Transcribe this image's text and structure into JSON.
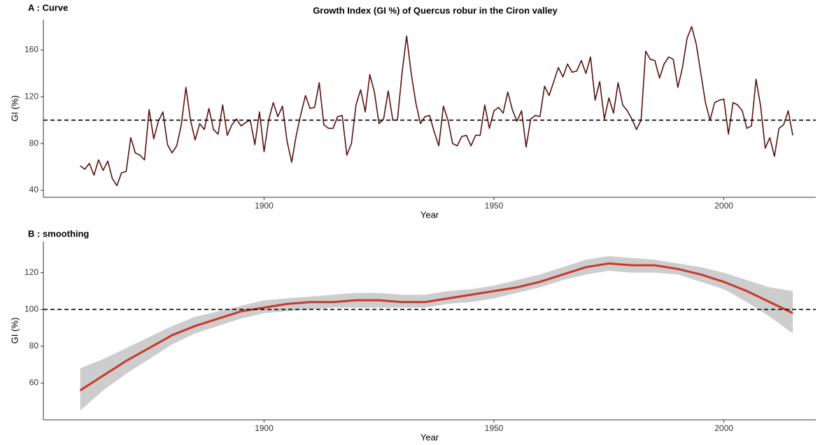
{
  "chart_data": [
    {
      "type": "line",
      "label": "A : Curve",
      "title": "Growth Index (GI %) of Quercus robur in the Ciron valley",
      "x_label": "Year",
      "y_label": "GI (%)",
      "x": [
        1860,
        1861,
        1862,
        1863,
        1864,
        1865,
        1866,
        1867,
        1868,
        1869,
        1870,
        1871,
        1872,
        1873,
        1874,
        1875,
        1876,
        1877,
        1878,
        1879,
        1880,
        1881,
        1882,
        1883,
        1884,
        1885,
        1886,
        1887,
        1888,
        1889,
        1890,
        1891,
        1892,
        1893,
        1894,
        1895,
        1896,
        1897,
        1898,
        1899,
        1900,
        1901,
        1902,
        1903,
        1904,
        1905,
        1906,
        1907,
        1908,
        1909,
        1910,
        1911,
        1912,
        1913,
        1914,
        1915,
        1916,
        1917,
        1918,
        1919,
        1920,
        1921,
        1922,
        1923,
        1924,
        1925,
        1926,
        1927,
        1928,
        1929,
        1930,
        1931,
        1932,
        1933,
        1934,
        1935,
        1936,
        1937,
        1938,
        1939,
        1940,
        1941,
        1942,
        1943,
        1944,
        1945,
        1946,
        1947,
        1948,
        1949,
        1950,
        1951,
        1952,
        1953,
        1954,
        1955,
        1956,
        1957,
        1958,
        1959,
        1960,
        1961,
        1962,
        1963,
        1964,
        1965,
        1966,
        1967,
        1968,
        1969,
        1970,
        1971,
        1972,
        1973,
        1974,
        1975,
        1976,
        1977,
        1978,
        1979,
        1980,
        1981,
        1982,
        1983,
        1984,
        1985,
        1986,
        1987,
        1988,
        1989,
        1990,
        1991,
        1992,
        1993,
        1994,
        1995,
        1996,
        1997,
        1998,
        1999,
        2000,
        2001,
        2002,
        2003,
        2004,
        2005,
        2006,
        2007,
        2008,
        2009,
        2010,
        2011,
        2012,
        2013,
        2014,
        2015
      ],
      "values": [
        61,
        58,
        63,
        53,
        66,
        57,
        65,
        50,
        44,
        55,
        56,
        85,
        72,
        70,
        66,
        109,
        84,
        99,
        107,
        79,
        72,
        78,
        96,
        128,
        100,
        83,
        97,
        92,
        110,
        92,
        88,
        113,
        87,
        96,
        101,
        95,
        98,
        100,
        79,
        107,
        73,
        100,
        115,
        103,
        112,
        82,
        64,
        87,
        105,
        121,
        110,
        111,
        132,
        96,
        93,
        93,
        103,
        104,
        70,
        80,
        113,
        126,
        107,
        139,
        124,
        97,
        101,
        125,
        100,
        100,
        140,
        172,
        140,
        115,
        97,
        103,
        104,
        90,
        78,
        112,
        100,
        80,
        78,
        86,
        87,
        78,
        87,
        87,
        113,
        93,
        108,
        111,
        106,
        124,
        109,
        99,
        108,
        77,
        101,
        104,
        103,
        129,
        121,
        133,
        145,
        137,
        148,
        141,
        142,
        151,
        140,
        154,
        117,
        133,
        101,
        119,
        106,
        132,
        113,
        108,
        101,
        92,
        100,
        159,
        152,
        151,
        136,
        148,
        154,
        152,
        128,
        145,
        170,
        180,
        165,
        140,
        115,
        100,
        115,
        117,
        118,
        88,
        115,
        113,
        108,
        93,
        95,
        135,
        112,
        76,
        85,
        69,
        93,
        96,
        108,
        87
      ],
      "color": "#5a1010",
      "hline": 100,
      "xlim": [
        1852,
        2020
      ],
      "xticks": [
        1900,
        1950,
        2000
      ],
      "ylim": [
        34,
        186
      ],
      "yticks": [
        40,
        80,
        120,
        160
      ]
    },
    {
      "type": "smooth",
      "label": "B : smoothing",
      "x_label": "Year",
      "y_label": "GI (%)",
      "x": [
        1860,
        1865,
        1870,
        1875,
        1880,
        1885,
        1890,
        1895,
        1900,
        1905,
        1910,
        1915,
        1920,
        1925,
        1930,
        1935,
        1940,
        1945,
        1950,
        1955,
        1960,
        1965,
        1970,
        1975,
        1980,
        1985,
        1990,
        1995,
        2000,
        2005,
        2010,
        2015
      ],
      "values": [
        56,
        64,
        72,
        79,
        86,
        91,
        95,
        99,
        101,
        103,
        104,
        104,
        105,
        105,
        104,
        104,
        106,
        108,
        110,
        112,
        115,
        119,
        123,
        125,
        124,
        124,
        122,
        119,
        115,
        110,
        104,
        98
      ],
      "lower": [
        45,
        56,
        65,
        73,
        81,
        87,
        91,
        95,
        98,
        99,
        100,
        101,
        101,
        101,
        101,
        101,
        103,
        104,
        106,
        109,
        112,
        116,
        119,
        121,
        120,
        120,
        119,
        115,
        111,
        104,
        96,
        87
      ],
      "upper": [
        68,
        73,
        79,
        85,
        91,
        96,
        99,
        102,
        105,
        106,
        107,
        108,
        109,
        109,
        108,
        108,
        110,
        111,
        113,
        116,
        119,
        123,
        127,
        129,
        128,
        127,
        125,
        123,
        120,
        116,
        112,
        110
      ],
      "color": "#c8392b",
      "band_color": "#c8c8c8",
      "hline": 100,
      "xlim": [
        1852,
        2020
      ],
      "xticks": [
        1900,
        1950,
        2000
      ],
      "ylim": [
        40,
        137
      ],
      "yticks": [
        60,
        80,
        100,
        120
      ]
    }
  ]
}
